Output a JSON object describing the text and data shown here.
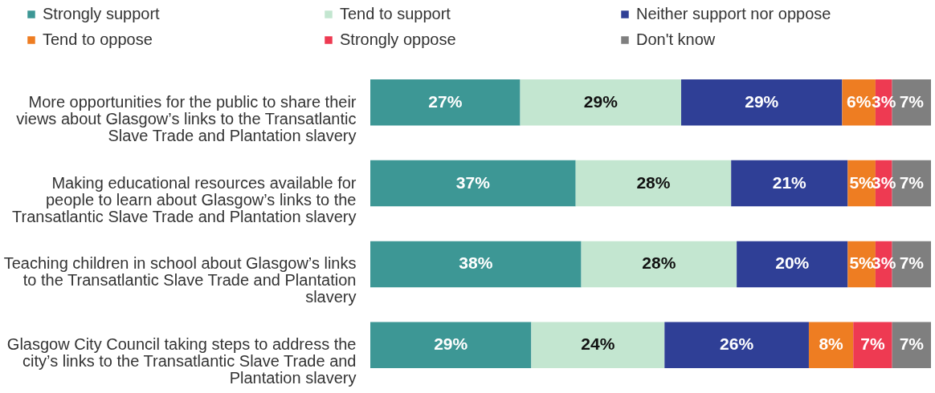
{
  "chart_data": {
    "type": "bar",
    "orientation": "horizontal",
    "stacked": true,
    "legend": "top",
    "categories": [
      "More opportunities for the public to share their views about Glasgow’s links to the Transatlantic Slave Trade and Plantation slavery",
      "Making educational resources available for people to learn about Glasgow’s links to the Transatlantic Slave Trade and Plantation slavery",
      "Teaching children in school about Glasgow’s links to the Transatlantic Slave Trade and Plantation slavery",
      "Glasgow City Council taking steps to address the city’s links to the Transatlantic Slave Trade and Plantation slavery"
    ],
    "series": [
      {
        "name": "Strongly support",
        "color": "#3d9795",
        "values": [
          27,
          37,
          38,
          29
        ],
        "value_labels": [
          "27%",
          "37%",
          "38%",
          "29%"
        ]
      },
      {
        "name": "Tend to support",
        "color": "#c3e6d0",
        "values": [
          29,
          28,
          28,
          24
        ],
        "value_labels": [
          "29%",
          "28%",
          "28%",
          "24%"
        ]
      },
      {
        "name": "Neither support nor oppose",
        "color": "#2f3f96",
        "values": [
          29,
          21,
          20,
          26
        ],
        "value_labels": [
          "29%",
          "21%",
          "20%",
          "26%"
        ]
      },
      {
        "name": "Tend to oppose",
        "color": "#ee7d22",
        "values": [
          6,
          5,
          5,
          8
        ],
        "value_labels": [
          "6%",
          "5%",
          "5%",
          "8%"
        ]
      },
      {
        "name": "Strongly oppose",
        "color": "#ee3a52",
        "values": [
          3,
          3,
          3,
          7
        ],
        "value_labels": [
          "3%",
          "3%",
          "3%",
          "7%"
        ]
      },
      {
        "name": "Don't know",
        "color": "#7f7f7f",
        "values": [
          7,
          7,
          7,
          7
        ],
        "value_labels": [
          "7%",
          "7%",
          "7%",
          "7%"
        ]
      }
    ]
  }
}
